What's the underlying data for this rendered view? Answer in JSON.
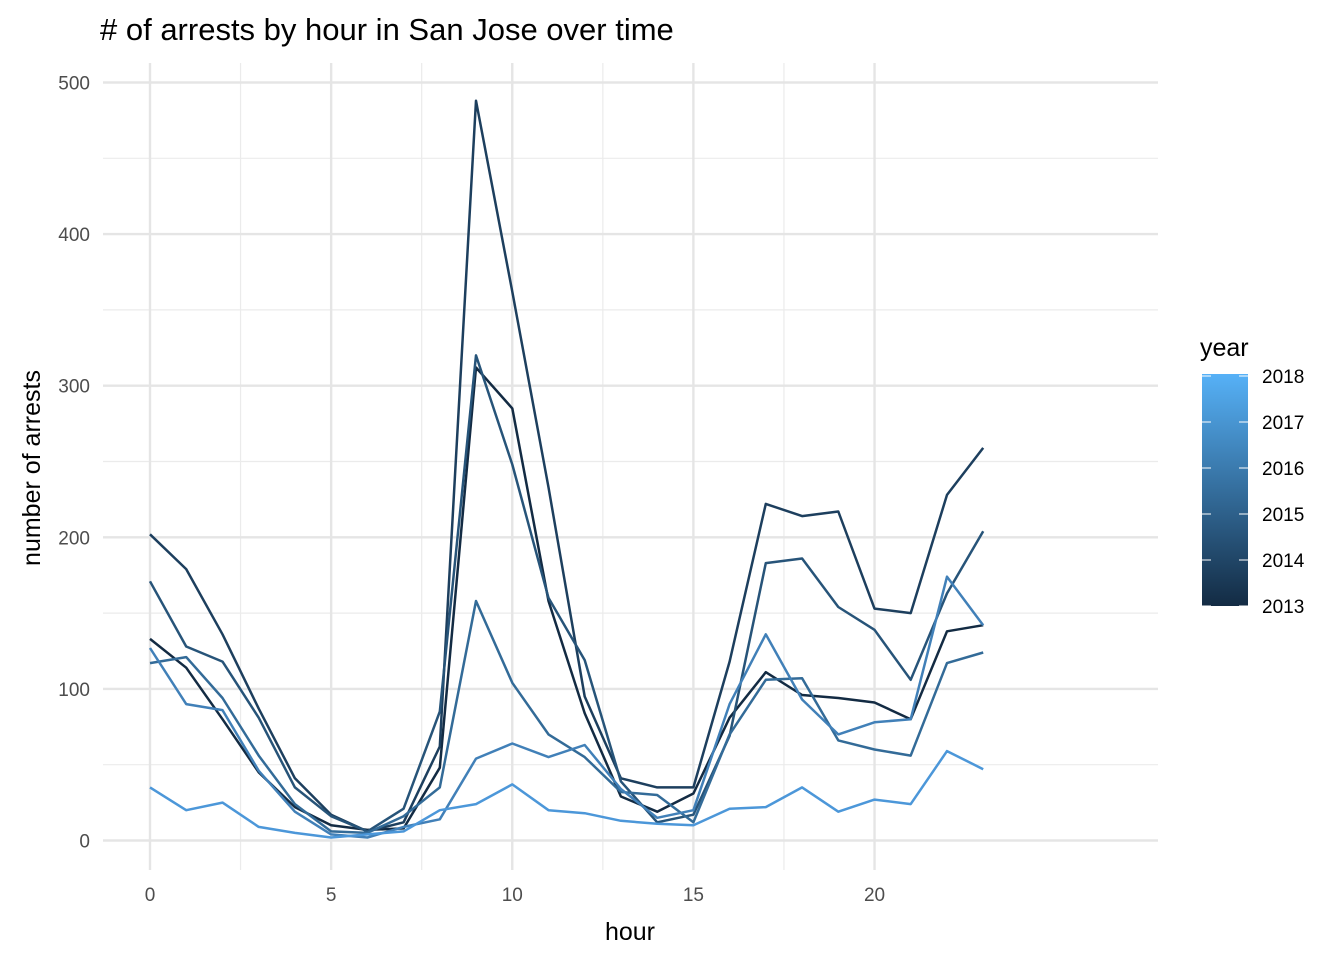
{
  "chart_data": {
    "type": "line",
    "title": "# of arrests by hour in San Jose over time",
    "xlabel": "hour",
    "ylabel": "number of arrests",
    "xlim": [
      0,
      23
    ],
    "ylim": [
      0,
      500
    ],
    "x_ticks": [
      0,
      5,
      10,
      15,
      20
    ],
    "y_ticks": [
      0,
      100,
      200,
      300,
      400,
      500
    ],
    "grid": true,
    "legend_placement": "right",
    "legend": {
      "title": "year",
      "type": "colorbar",
      "labels": [
        "2018",
        "2017",
        "2016",
        "2015",
        "2014",
        "2013"
      ],
      "color_low": "#132B43",
      "color_high": "#56B1F7"
    },
    "x": [
      0,
      1,
      2,
      3,
      4,
      5,
      6,
      7,
      8,
      9,
      10,
      11,
      12,
      13,
      14,
      15,
      16,
      17,
      18,
      19,
      20,
      21,
      22,
      23
    ],
    "series": [
      {
        "year": 2013,
        "color": "#132B43",
        "values": [
          133,
          114,
          80,
          45,
          22,
          10,
          7,
          8,
          48,
          312,
          285,
          158,
          84,
          29,
          19,
          31,
          81,
          111,
          96,
          94,
          91,
          80,
          138,
          142
        ]
      },
      {
        "year": 2014,
        "color": "#1D3F5E",
        "values": [
          202,
          179,
          136,
          87,
          41,
          17,
          6,
          12,
          62,
          488,
          362,
          233,
          95,
          41,
          35,
          35,
          118,
          222,
          214,
          217,
          153,
          150,
          228,
          259
        ]
      },
      {
        "year": 2015,
        "color": "#275479",
        "values": [
          171,
          128,
          118,
          81,
          35,
          16,
          6,
          21,
          85,
          320,
          248,
          160,
          119,
          39,
          12,
          17,
          69,
          183,
          186,
          154,
          139,
          106,
          163,
          204
        ]
      },
      {
        "year": 2016,
        "color": "#336B98",
        "values": [
          117,
          121,
          94,
          56,
          24,
          6,
          5,
          16,
          35,
          158,
          104,
          70,
          55,
          32,
          30,
          12,
          70,
          106,
          107,
          66,
          60,
          56,
          117,
          124
        ]
      },
      {
        "year": 2017,
        "color": "#4180B8",
        "values": [
          127,
          90,
          86,
          46,
          19,
          4,
          2,
          9,
          14,
          54,
          64,
          55,
          63,
          34,
          15,
          20,
          90,
          136,
          93,
          70,
          78,
          80,
          174,
          142
        ]
      },
      {
        "year": 2018,
        "color": "#4C97D9",
        "values": [
          35,
          20,
          25,
          9,
          5,
          2,
          4,
          6,
          20,
          24,
          37,
          20,
          18,
          13,
          11,
          10,
          21,
          22,
          35,
          19,
          27,
          24,
          59,
          47
        ]
      }
    ]
  }
}
